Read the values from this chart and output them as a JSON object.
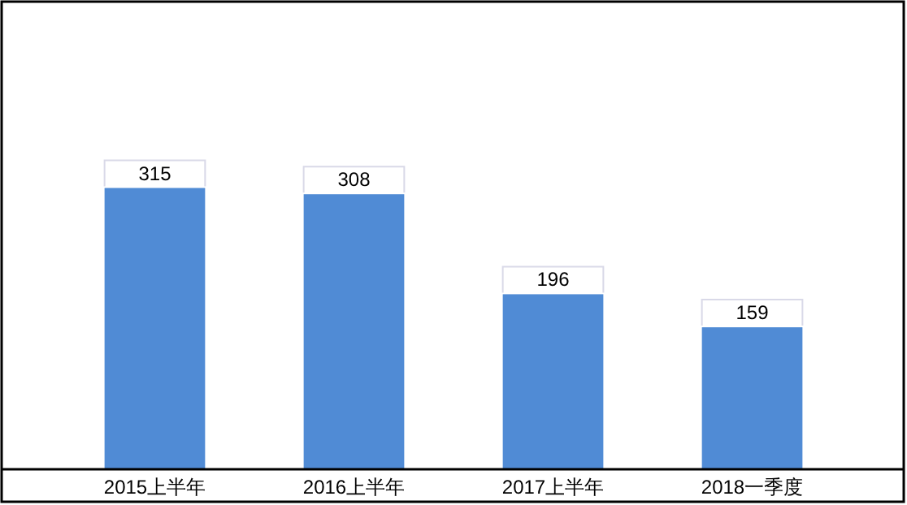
{
  "chart_data": {
    "type": "bar",
    "categories": [
      "2015上半年",
      "2016上半年",
      "2017上半年",
      "2018一季度"
    ],
    "values": [
      315,
      308,
      196,
      159
    ],
    "color": "#508bd5",
    "data_labels": true
  }
}
